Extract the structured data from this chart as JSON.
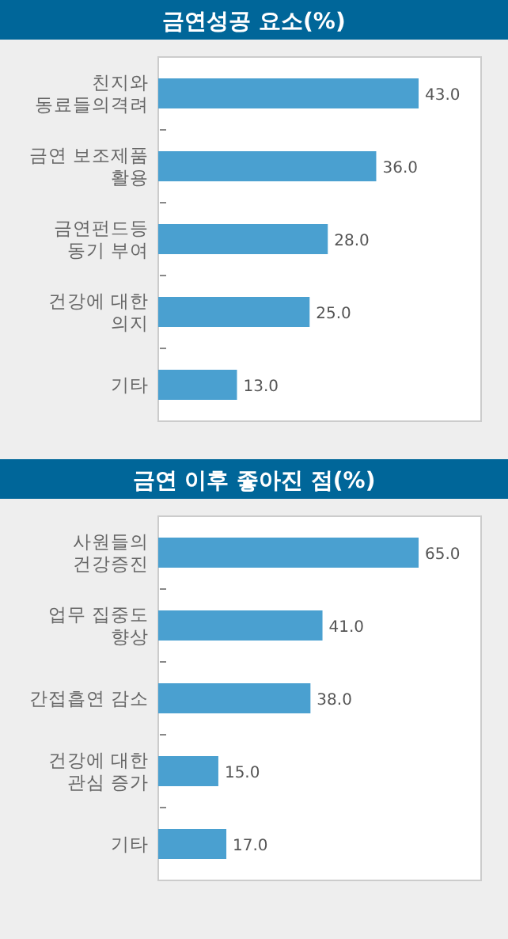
{
  "chart_data": [
    {
      "type": "bar",
      "orientation": "horizontal",
      "title": "금연성공 요소(%)",
      "categories": [
        "친지와\n동료들의격려",
        "금연 보조제품\n활용",
        "금연펀드등\n동기 부여",
        "건강에 대한\n의지",
        "기타"
      ],
      "values": [
        43,
        36,
        28,
        25,
        13
      ],
      "value_labels": [
        "43.0",
        "36.0",
        "28.0",
        "25.0",
        "13.0"
      ],
      "color": "#4aa0d0"
    },
    {
      "type": "bar",
      "orientation": "horizontal",
      "title": "금연 이후 좋아진 점(%)",
      "categories": [
        "사원들의\n건강증진",
        "업무 집중도\n향상",
        "간접흡연 감소",
        "건강에 대한\n관심 증가",
        "기타"
      ],
      "values": [
        65,
        41,
        38,
        15,
        17
      ],
      "value_labels": [
        "65.0",
        "41.0",
        "38.0",
        "15.0",
        "17.0"
      ],
      "color": "#4aa0d0"
    }
  ]
}
